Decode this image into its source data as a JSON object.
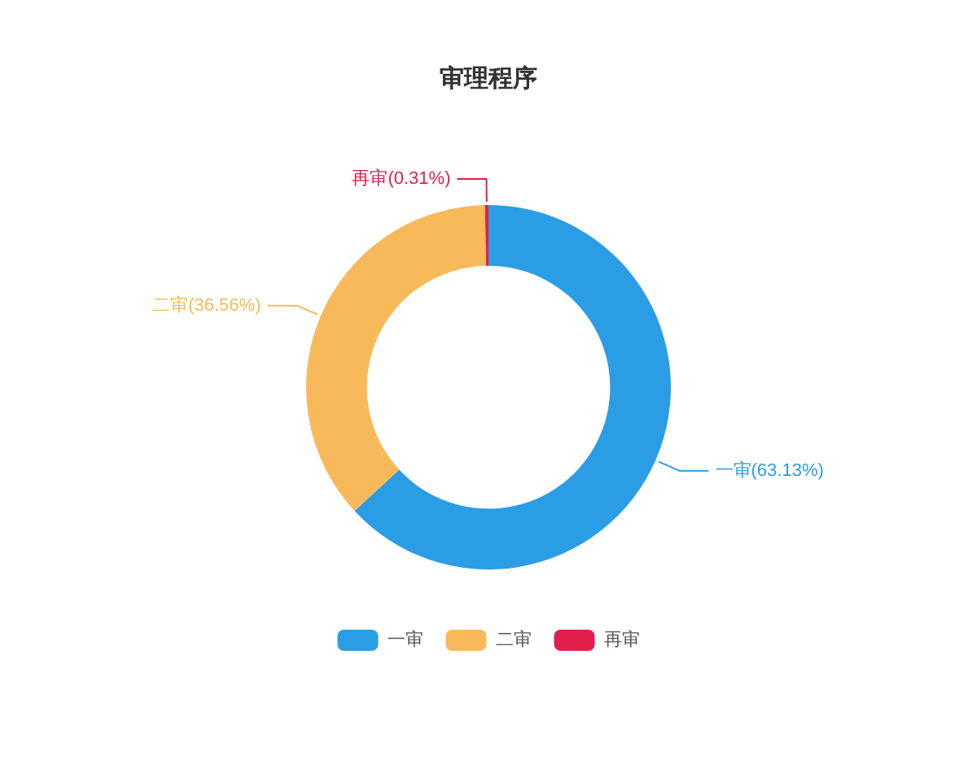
{
  "chart_data": {
    "type": "donut",
    "title": "审理程序",
    "categories": [
      "一审",
      "二审",
      "再审"
    ],
    "values": [
      63.13,
      36.56,
      0.31
    ],
    "colors": [
      "#2b9de4",
      "#f8b95b",
      "#e2204c"
    ],
    "value_labels": [
      "一审(63.13%)",
      "二审(36.56%)",
      "再审(0.31%)"
    ],
    "legend": "bottom"
  }
}
